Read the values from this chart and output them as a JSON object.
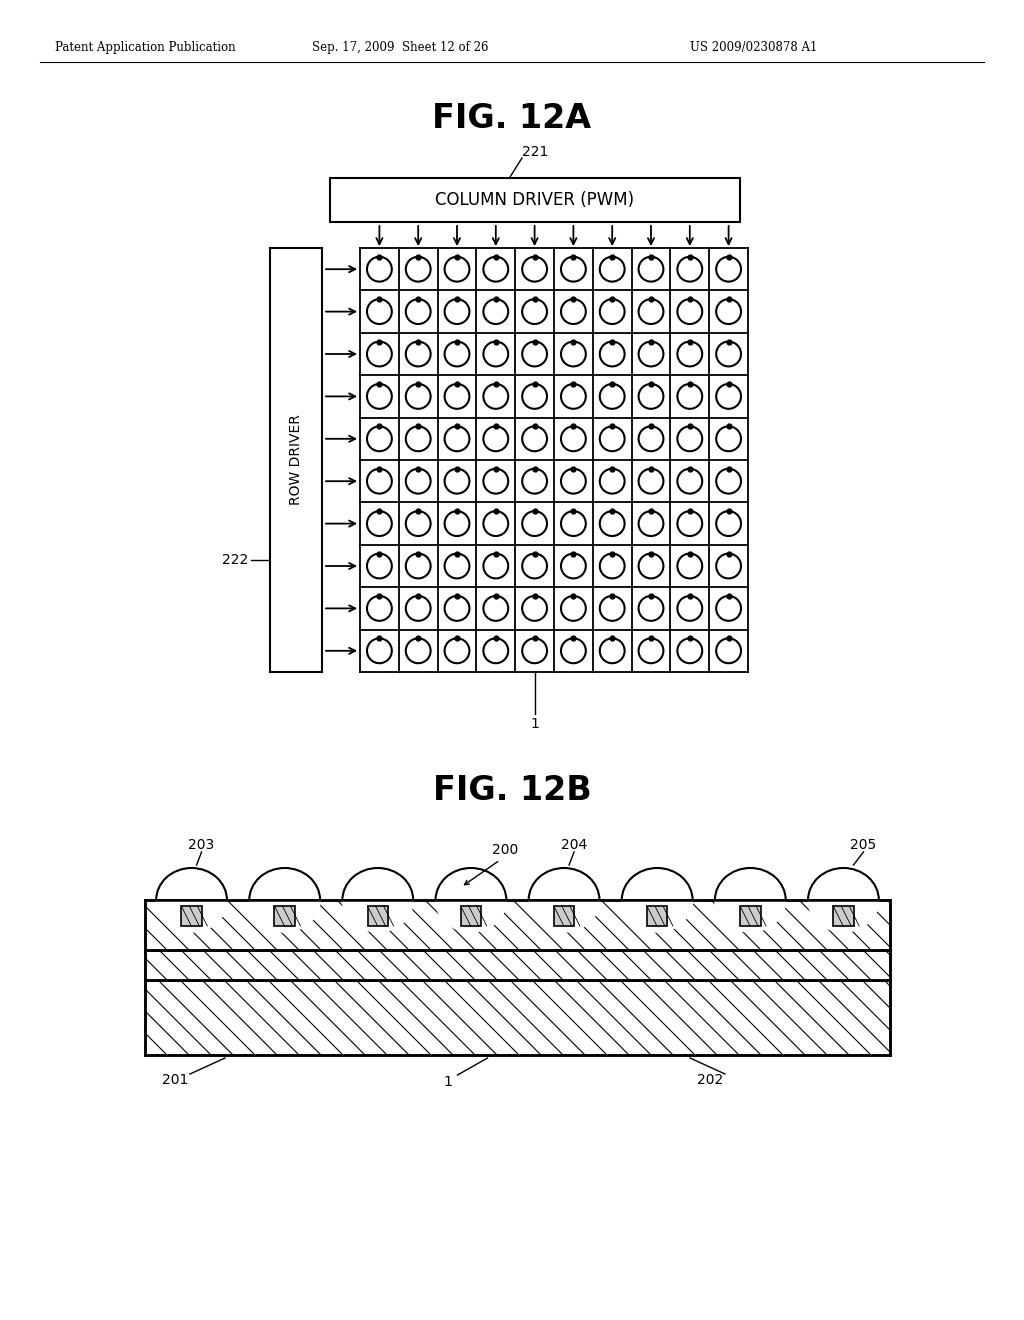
{
  "bg_color": "#ffffff",
  "header_left": "Patent Application Publication",
  "header_mid": "Sep. 17, 2009  Sheet 12 of 26",
  "header_right": "US 2009/0230878 A1",
  "fig12a_title": "FIG. 12A",
  "fig12b_title": "FIG. 12B",
  "col_driver_label": "COLUMN DRIVER (PWM)",
  "row_driver_label": "ROW DRIVER",
  "label_221": "221",
  "label_222": "222",
  "label_1a": "1",
  "label_1b": "1",
  "label_200": "200",
  "label_201": "201",
  "label_202": "202",
  "label_203": "203",
  "label_204": "204",
  "label_205": "205",
  "grid_rows": 10,
  "grid_cols": 10
}
